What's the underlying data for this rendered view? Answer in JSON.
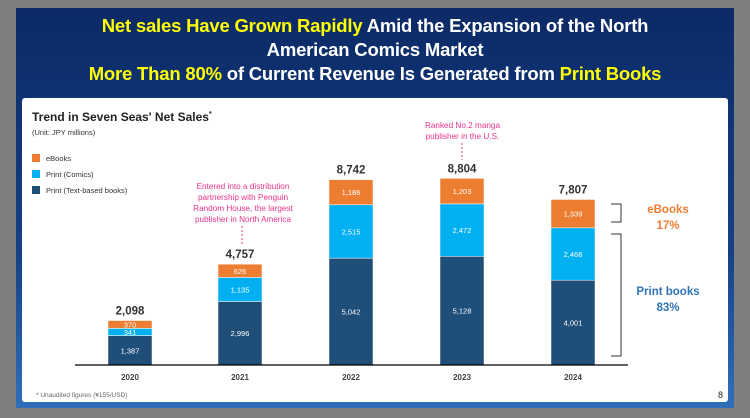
{
  "header": {
    "line1_highlight": "Net sales Have Grown Rapidly",
    "line1_rest": " Amid the Expansion of the North",
    "line2": "American Comics Market",
    "line3_highlight1": "More Than 80%",
    "line3_mid": " of Current Revenue Is Generated from ",
    "line3_highlight2": "Print Books"
  },
  "annotations": {
    "penguin": "Entered into a distribution partnership with Penguin Random House, the largest publisher in North America",
    "ranked": "Ranked No.2 manga publisher in the U.S.",
    "ebooks_share_label": "eBooks",
    "ebooks_share_value": "17%",
    "print_share_label": "Print books",
    "print_share_value": "83%"
  },
  "footer": {
    "footnote": "* Unaudited figures (¥155/USD)",
    "page_number": "8"
  },
  "chart_data": {
    "type": "bar",
    "stacked": true,
    "title": "Trend in Seven Seas' Net Sales",
    "title_mark": "*",
    "unit": "(Unit: JPY millions)",
    "categories": [
      "2020",
      "2021",
      "2022",
      "2023",
      "2024"
    ],
    "series": [
      {
        "name": "Print (Text-based books)",
        "color": "#1f4e79",
        "values": [
          1387,
          2996,
          5042,
          5128,
          4001
        ]
      },
      {
        "name": "Print (Comics)",
        "color": "#00b0f0",
        "values": [
          341,
          1135,
          2515,
          2472,
          2468
        ]
      },
      {
        "name": "eBooks",
        "color": "#ed7d31",
        "values": [
          370,
          626,
          1186,
          1203,
          1339
        ]
      }
    ],
    "totals": [
      "2,098",
      "4,757",
      "8,742",
      "8,804",
      "7,807"
    ],
    "legend_order": [
      "eBooks",
      "Print (Comics)",
      "Print (Text-based books)"
    ],
    "legend_position": "top-left",
    "ylim": [
      0,
      9000
    ],
    "grid": false
  }
}
